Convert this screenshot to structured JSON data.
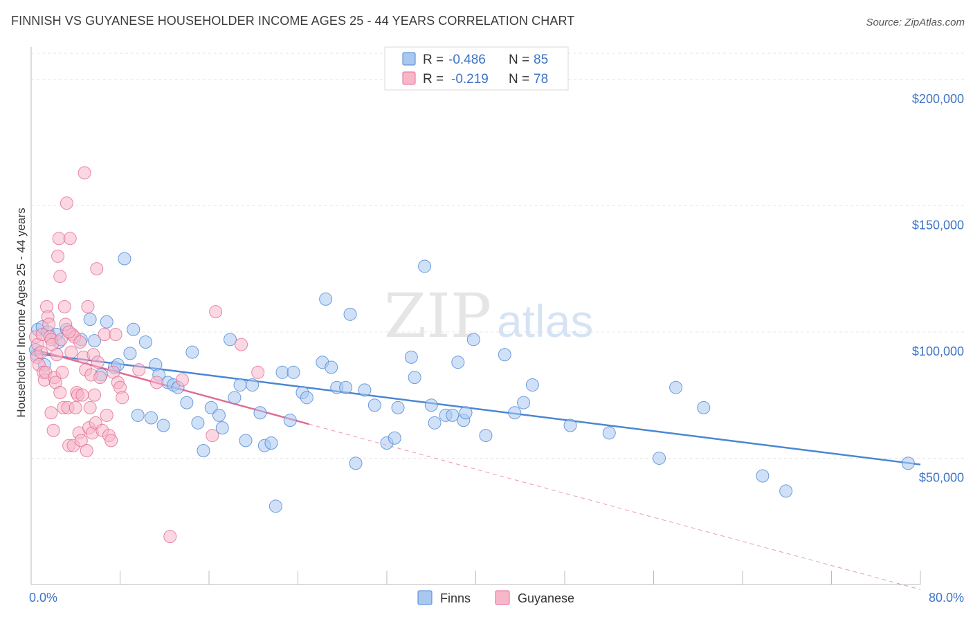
{
  "title": "FINNISH VS GUYANESE HOUSEHOLDER INCOME AGES 25 - 44 YEARS CORRELATION CHART",
  "source": "Source: ZipAtlas.com",
  "watermark": {
    "zip": "ZIP",
    "atlas": "atlas"
  },
  "legend": {
    "rows": [
      {
        "r_label": "R =",
        "r_value": "-0.486",
        "n_label": "N =",
        "n_value": "85",
        "color": "#a9c8f0"
      },
      {
        "r_label": "R =",
        "r_value": "-0.219",
        "n_label": "N =",
        "n_value": "78",
        "color": "#f7b7c9"
      }
    ]
  },
  "bottom_legend": [
    {
      "label": "Finns",
      "color": "#a9c8f0"
    },
    {
      "label": "Guyanese",
      "color": "#f7b7c9"
    }
  ],
  "chart_data": {
    "type": "scatter",
    "xlabel": "",
    "ylabel": "Householder Income Ages 25 - 44 years",
    "xlim": [
      0,
      80
    ],
    "ylim": [
      0,
      215000
    ],
    "x_tick_labels": [
      "0.0%",
      "80.0%"
    ],
    "y_ticks": [
      {
        "value": 200000,
        "label": "$200,000"
      },
      {
        "value": 150000,
        "label": "$150,000"
      },
      {
        "value": 100000,
        "label": "$100,000"
      },
      {
        "value": 50000,
        "label": "$50,000"
      }
    ],
    "grid": true,
    "series": [
      {
        "name": "Finns",
        "color": "#4a86d4",
        "fill": "#a9c8f0",
        "trend": {
          "x": [
            0.3,
            80
          ],
          "y": [
            91500,
            47500
          ]
        },
        "points": [
          [
            0.5,
            91000
          ],
          [
            0.6,
            101000
          ],
          [
            1.0,
            102000
          ],
          [
            1.2,
            87000
          ],
          [
            1.5,
            100000
          ],
          [
            2.3,
            99000
          ],
          [
            2.5,
            96000
          ],
          [
            3.2,
            101000
          ],
          [
            4.5,
            97000
          ],
          [
            5.3,
            105000
          ],
          [
            5.7,
            96500
          ],
          [
            6.3,
            83000
          ],
          [
            6.8,
            104000
          ],
          [
            7.5,
            86000
          ],
          [
            7.8,
            87000
          ],
          [
            8.4,
            129000
          ],
          [
            8.9,
            91500
          ],
          [
            9.2,
            101000
          ],
          [
            9.6,
            67000
          ],
          [
            10.3,
            96000
          ],
          [
            10.8,
            66000
          ],
          [
            11.2,
            87000
          ],
          [
            11.5,
            83000
          ],
          [
            11.9,
            63000
          ],
          [
            12.3,
            80000
          ],
          [
            12.8,
            79000
          ],
          [
            13.2,
            78000
          ],
          [
            14.0,
            72000
          ],
          [
            14.5,
            92000
          ],
          [
            15.0,
            64000
          ],
          [
            15.5,
            53000
          ],
          [
            16.2,
            70000
          ],
          [
            16.9,
            67000
          ],
          [
            17.2,
            62000
          ],
          [
            17.9,
            97000
          ],
          [
            18.3,
            74000
          ],
          [
            18.8,
            79000
          ],
          [
            19.3,
            57000
          ],
          [
            19.9,
            79000
          ],
          [
            20.6,
            68000
          ],
          [
            21.0,
            55000
          ],
          [
            21.6,
            56000
          ],
          [
            22.0,
            31000
          ],
          [
            22.6,
            84000
          ],
          [
            23.3,
            65000
          ],
          [
            23.6,
            84000
          ],
          [
            24.4,
            76000
          ],
          [
            24.8,
            74000
          ],
          [
            26.2,
            88000
          ],
          [
            26.5,
            113000
          ],
          [
            27.0,
            86000
          ],
          [
            27.5,
            78000
          ],
          [
            28.3,
            78000
          ],
          [
            28.7,
            107000
          ],
          [
            29.2,
            48000
          ],
          [
            30.0,
            77000
          ],
          [
            30.9,
            71000
          ],
          [
            32.0,
            56000
          ],
          [
            32.7,
            58000
          ],
          [
            33.0,
            70000
          ],
          [
            34.2,
            90000
          ],
          [
            34.5,
            82000
          ],
          [
            35.4,
            126000
          ],
          [
            36.0,
            71000
          ],
          [
            36.3,
            64000
          ],
          [
            37.3,
            67000
          ],
          [
            37.9,
            67000
          ],
          [
            38.4,
            88000
          ],
          [
            38.9,
            65000
          ],
          [
            39.1,
            68000
          ],
          [
            39.8,
            97000
          ],
          [
            40.9,
            59000
          ],
          [
            42.6,
            91000
          ],
          [
            43.5,
            68000
          ],
          [
            44.3,
            72000
          ],
          [
            45.1,
            79000
          ],
          [
            48.5,
            63000
          ],
          [
            52.0,
            60000
          ],
          [
            56.5,
            50000
          ],
          [
            58.0,
            78000
          ],
          [
            60.5,
            70000
          ],
          [
            65.8,
            43000
          ],
          [
            67.9,
            37000
          ],
          [
            78.9,
            48000
          ],
          [
            0.4,
            93000
          ]
        ]
      },
      {
        "name": "Guyanese",
        "color": "#e06b94",
        "fill": "#f7b7c9",
        "trend": {
          "x": [
            0.3,
            25
          ],
          "y": [
            93000,
            63500
          ]
        },
        "trend_extension": {
          "x": [
            25,
            80
          ],
          "y": [
            63500,
            -2000
          ]
        },
        "points": [
          [
            0.4,
            98000
          ],
          [
            0.5,
            90000
          ],
          [
            0.6,
            95000
          ],
          [
            0.7,
            87000
          ],
          [
            0.9,
            92000
          ],
          [
            1.0,
            99000
          ],
          [
            1.1,
            84000
          ],
          [
            1.2,
            81000
          ],
          [
            1.3,
            84000
          ],
          [
            1.4,
            110000
          ],
          [
            1.5,
            106000
          ],
          [
            1.6,
            103000
          ],
          [
            1.7,
            98000
          ],
          [
            1.8,
            97000
          ],
          [
            1.9,
            95000
          ],
          [
            2.0,
            61000
          ],
          [
            2.1,
            82000
          ],
          [
            2.2,
            80000
          ],
          [
            2.3,
            91000
          ],
          [
            2.4,
            130000
          ],
          [
            2.5,
            137000
          ],
          [
            2.6,
            122000
          ],
          [
            2.7,
            97000
          ],
          [
            2.8,
            84000
          ],
          [
            2.9,
            70000
          ],
          [
            3.0,
            110000
          ],
          [
            3.1,
            103000
          ],
          [
            3.2,
            151000
          ],
          [
            3.3,
            70000
          ],
          [
            3.4,
            55000
          ],
          [
            3.5,
            137000
          ],
          [
            3.6,
            92000
          ],
          [
            3.7,
            99000
          ],
          [
            3.8,
            55000
          ],
          [
            3.9,
            98000
          ],
          [
            4.0,
            70000
          ],
          [
            4.1,
            76000
          ],
          [
            4.2,
            75000
          ],
          [
            4.3,
            60000
          ],
          [
            4.4,
            96000
          ],
          [
            4.5,
            57000
          ],
          [
            4.6,
            75000
          ],
          [
            4.7,
            90000
          ],
          [
            4.8,
            163000
          ],
          [
            4.9,
            85000
          ],
          [
            5.0,
            53000
          ],
          [
            5.1,
            110000
          ],
          [
            5.2,
            62000
          ],
          [
            5.3,
            70000
          ],
          [
            5.4,
            83000
          ],
          [
            5.5,
            60000
          ],
          [
            5.6,
            91000
          ],
          [
            5.7,
            75000
          ],
          [
            5.8,
            64000
          ],
          [
            5.9,
            125000
          ],
          [
            6.0,
            88000
          ],
          [
            6.2,
            82000
          ],
          [
            6.4,
            61000
          ],
          [
            6.6,
            99000
          ],
          [
            6.8,
            67000
          ],
          [
            7.0,
            59000
          ],
          [
            7.2,
            57000
          ],
          [
            7.4,
            84000
          ],
          [
            7.6,
            99000
          ],
          [
            7.8,
            80000
          ],
          [
            8.0,
            78000
          ],
          [
            8.2,
            74000
          ],
          [
            9.7,
            85000
          ],
          [
            11.3,
            80000
          ],
          [
            12.5,
            19000
          ],
          [
            13.6,
            81000
          ],
          [
            16.3,
            59000
          ],
          [
            16.6,
            108000
          ],
          [
            18.9,
            95000
          ],
          [
            20.4,
            84000
          ],
          [
            1.8,
            68000
          ],
          [
            2.6,
            76000
          ],
          [
            3.4,
            100000
          ]
        ]
      }
    ]
  }
}
